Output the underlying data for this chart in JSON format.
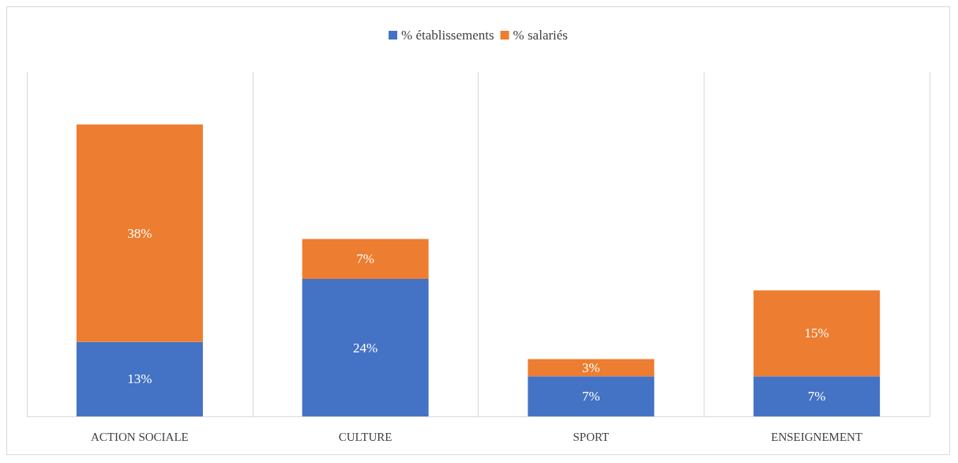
{
  "chart_data": {
    "type": "bar",
    "stacked": true,
    "categories": [
      "ACTION SOCIALE",
      "CULTURE",
      "SPORT",
      "ENSEIGNEMENT"
    ],
    "series": [
      {
        "name": "% établissements",
        "color": "#4472c4",
        "values": [
          13,
          24,
          7,
          7
        ],
        "value_labels": [
          "13%",
          "24%",
          "7%",
          "7%"
        ]
      },
      {
        "name": "% salariés",
        "color": "#ed7d31",
        "values": [
          38,
          7,
          3,
          15
        ],
        "value_labels": [
          "38%",
          "7%",
          "3%",
          "15%"
        ]
      }
    ],
    "legend": "top",
    "grid": "x"
  }
}
